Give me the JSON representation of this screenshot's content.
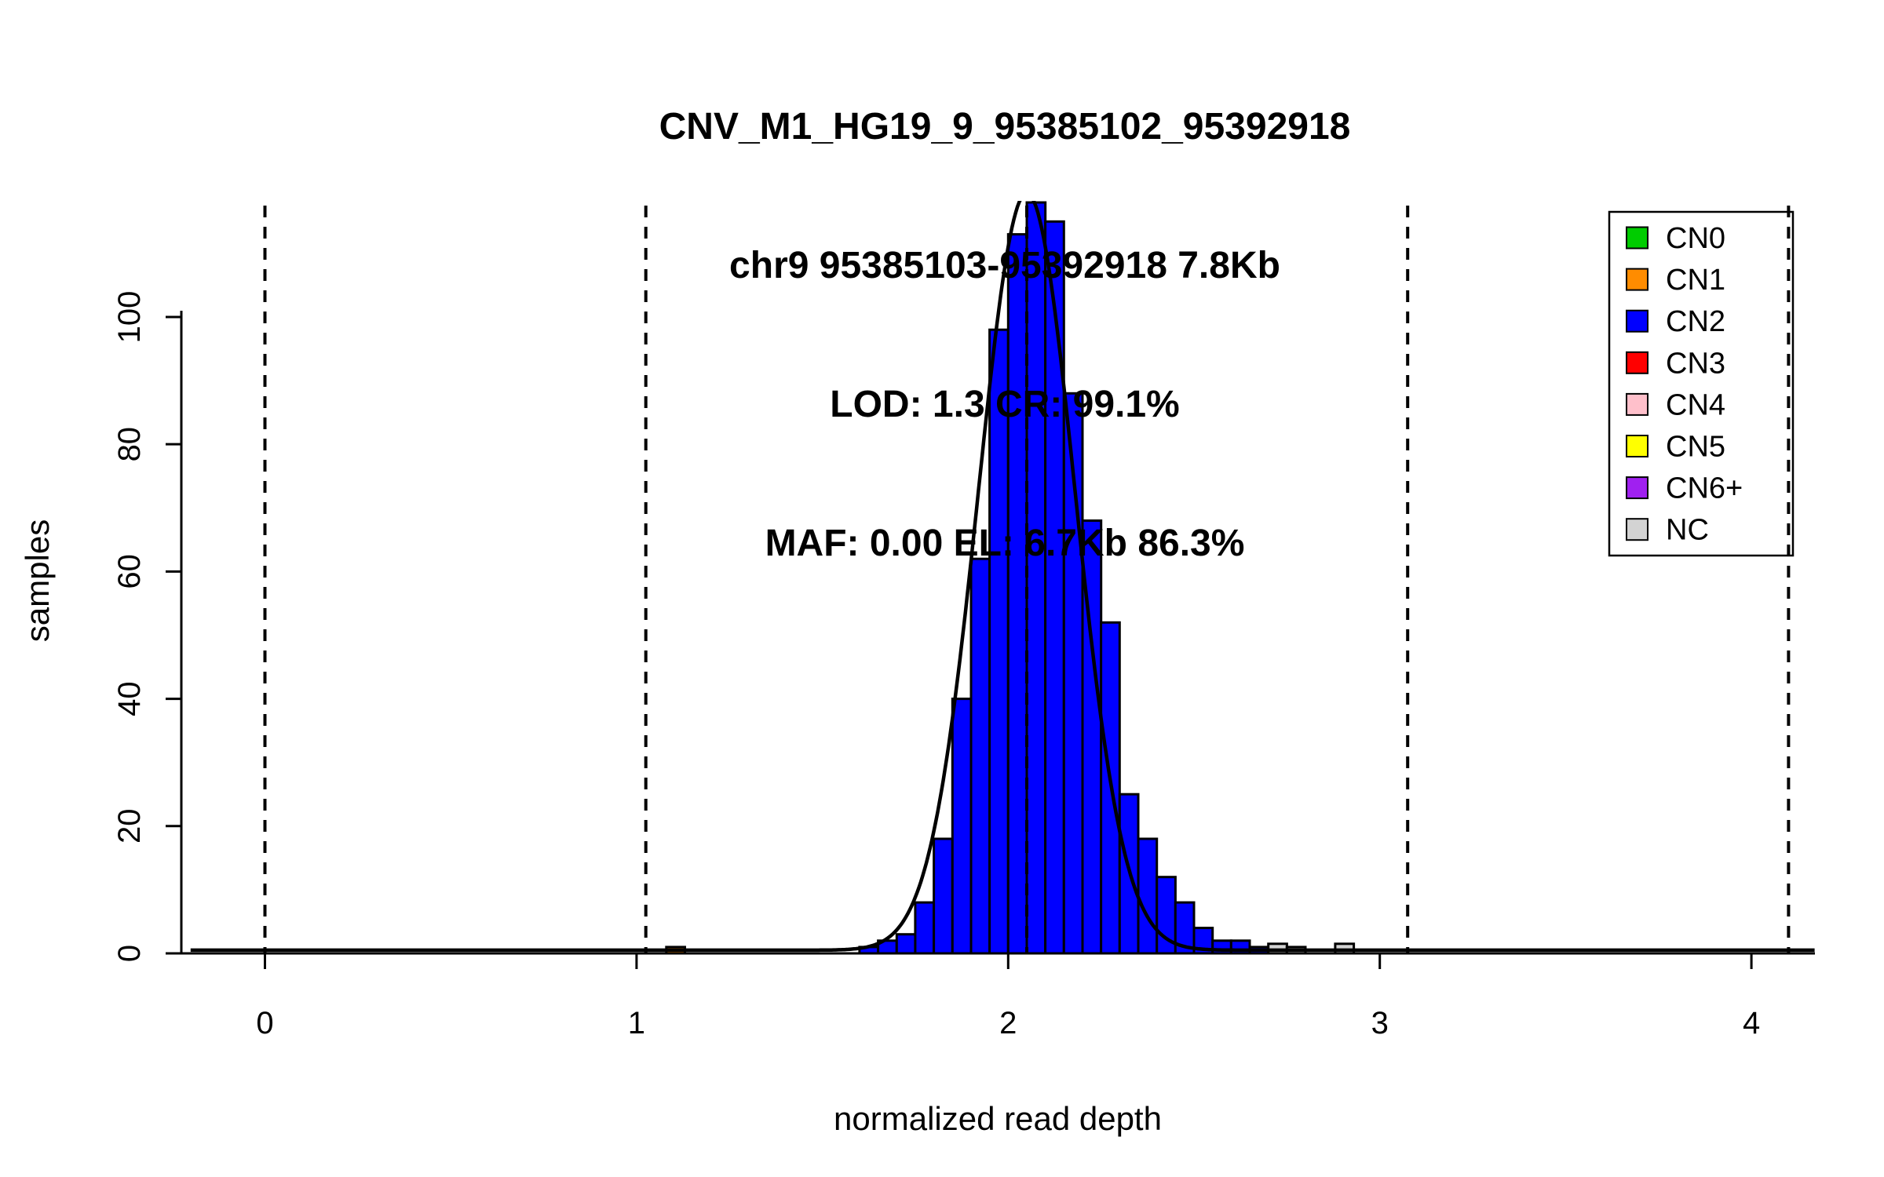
{
  "chart_data": {
    "type": "bar",
    "title_lines": [
      "CNV_M1_HG19_9_95385102_95392918",
      "chr9 95385103-95392918 7.8Kb",
      "LOD: 1.3 CR: 99.1%",
      "MAF: 0.00 EL: 6.7Kb 86.3%"
    ],
    "xlabel": "normalized read depth",
    "ylabel": "samples",
    "xlim": [
      -0.25,
      4.17
    ],
    "ylim": [
      0,
      118
    ],
    "xticks": [
      "0",
      "1",
      "2",
      "3",
      "4"
    ],
    "xtick_values": [
      0,
      1,
      2,
      3,
      4
    ],
    "yticks": [
      "0",
      "20",
      "40",
      "60",
      "80",
      "100"
    ],
    "ytick_values": [
      0,
      20,
      40,
      60,
      80,
      100
    ],
    "grid": "off",
    "bin_width": 0.05,
    "bars": [
      {
        "x": 1.08,
        "h": 1,
        "cn": "CN1"
      },
      {
        "x": 1.6,
        "h": 1,
        "cn": "CN2"
      },
      {
        "x": 1.65,
        "h": 2,
        "cn": "CN2"
      },
      {
        "x": 1.7,
        "h": 3,
        "cn": "CN2"
      },
      {
        "x": 1.75,
        "h": 8,
        "cn": "CN2"
      },
      {
        "x": 1.8,
        "h": 18,
        "cn": "CN2"
      },
      {
        "x": 1.85,
        "h": 40,
        "cn": "CN2"
      },
      {
        "x": 1.9,
        "h": 62,
        "cn": "CN2"
      },
      {
        "x": 1.95,
        "h": 98,
        "cn": "CN2"
      },
      {
        "x": 2.0,
        "h": 113,
        "cn": "CN2"
      },
      {
        "x": 2.05,
        "h": 118,
        "cn": "CN2"
      },
      {
        "x": 2.1,
        "h": 115,
        "cn": "CN2"
      },
      {
        "x": 2.15,
        "h": 88,
        "cn": "CN2"
      },
      {
        "x": 2.2,
        "h": 68,
        "cn": "CN2"
      },
      {
        "x": 2.25,
        "h": 52,
        "cn": "CN2"
      },
      {
        "x": 2.3,
        "h": 25,
        "cn": "CN2"
      },
      {
        "x": 2.35,
        "h": 18,
        "cn": "CN2"
      },
      {
        "x": 2.4,
        "h": 12,
        "cn": "CN2"
      },
      {
        "x": 2.45,
        "h": 8,
        "cn": "CN2"
      },
      {
        "x": 2.5,
        "h": 4,
        "cn": "CN2"
      },
      {
        "x": 2.55,
        "h": 2,
        "cn": "CN2"
      },
      {
        "x": 2.6,
        "h": 2,
        "cn": "CN2"
      },
      {
        "x": 2.65,
        "h": 1,
        "cn": "CN2"
      },
      {
        "x": 2.7,
        "h": 1.5,
        "cn": "NC"
      },
      {
        "x": 2.75,
        "h": 1,
        "cn": "NC"
      },
      {
        "x": 2.88,
        "h": 1.5,
        "cn": "NC"
      }
    ],
    "dashed_lines_x": [
      0,
      1.025,
      2.05,
      3.075,
      4.1
    ],
    "curve": {
      "mean": 2.05,
      "sd": 0.13,
      "peak": 119,
      "baseline": 0.5,
      "range": [
        -0.2,
        4.17
      ]
    },
    "legend": {
      "position": "top-right",
      "items": [
        {
          "label": "CN0",
          "color": "#00CC00"
        },
        {
          "label": "CN1",
          "color": "#FF8C00"
        },
        {
          "label": "CN2",
          "color": "#0000FF"
        },
        {
          "label": "CN3",
          "color": "#FF0000"
        },
        {
          "label": "CN4",
          "color": "#FFC0CB"
        },
        {
          "label": "CN5",
          "color": "#FFFF00"
        },
        {
          "label": "CN6+",
          "color": "#A020F0"
        },
        {
          "label": "NC",
          "color": "#D3D3D3"
        }
      ]
    },
    "colors": {
      "CN0": "#00CC00",
      "CN1": "#FF8C00",
      "CN2": "#0000FF",
      "CN3": "#FF0000",
      "CN4": "#FFC0CB",
      "CN5": "#FFFF00",
      "CN6+": "#A020F0",
      "NC": "#D3D3D3",
      "axis": "#000000",
      "curve": "#000000"
    }
  }
}
